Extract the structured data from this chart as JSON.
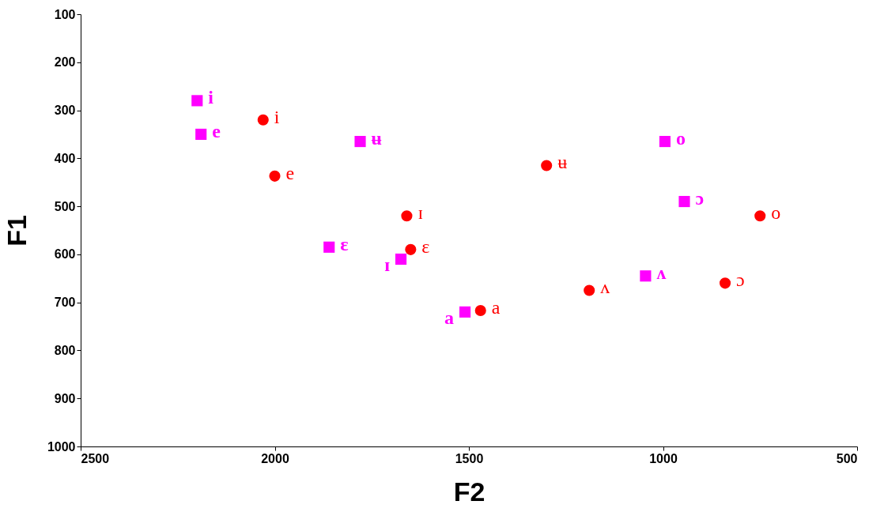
{
  "chart_data": {
    "type": "scatter",
    "xlabel": "F2",
    "ylabel": "F1",
    "xlim": [
      2500,
      500
    ],
    "ylim": [
      1000,
      100
    ],
    "xticks": [
      2500,
      2000,
      1500,
      1000,
      500
    ],
    "yticks": [
      100,
      200,
      300,
      400,
      500,
      600,
      700,
      800,
      900,
      1000
    ],
    "grid": false,
    "series": [
      {
        "color": "#ff00ff",
        "marker": "square",
        "x": [
          2200,
          2190,
          1780,
          1860,
          1675,
          1510,
          995,
          945,
          1045
        ],
        "values": [
          280,
          350,
          365,
          585,
          610,
          720,
          365,
          490,
          645
        ],
        "value_labels": [
          "i",
          "e",
          "ʉ",
          "ɛ",
          "ɪ",
          "a",
          "o",
          "ɔ",
          "ʌ"
        ]
      },
      {
        "color": "#ff0000",
        "marker": "circle",
        "x": [
          2030,
          2000,
          1660,
          1650,
          1470,
          1300,
          1190,
          840,
          750
        ],
        "values": [
          320,
          437,
          520,
          590,
          717,
          415,
          675,
          660,
          520
        ],
        "value_labels": [
          "i",
          "e",
          "ɪ",
          "ɛ",
          "a",
          "ʉ",
          "ʌ",
          "ɔ",
          "o"
        ]
      }
    ]
  }
}
